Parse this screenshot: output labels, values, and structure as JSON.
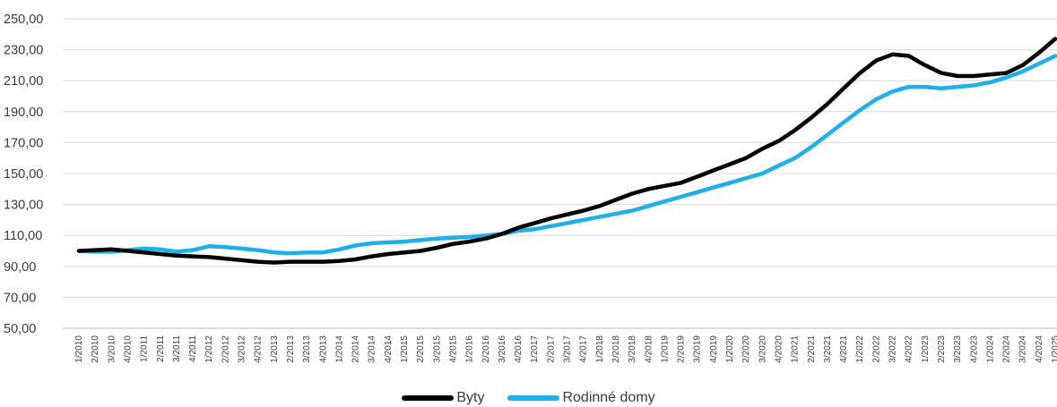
{
  "chart_data": {
    "type": "line",
    "title": "",
    "xlabel": "",
    "ylabel": "",
    "ylim": [
      50,
      250
    ],
    "y_ticks": [
      "50,00",
      "70,00",
      "90,00",
      "110,00",
      "130,00",
      "150,00",
      "170,00",
      "190,00",
      "210,00",
      "230,00",
      "250,00"
    ],
    "grid": true,
    "legend_position": "bottom",
    "categories": [
      "1/2010",
      "2/2010",
      "3/2010",
      "4/2010",
      "1/2011",
      "2/2011",
      "3/2011",
      "4/2011",
      "1/2012",
      "2/2012",
      "3/2012",
      "4/2012",
      "1/2013",
      "2/2013",
      "3/2013",
      "4/2013",
      "1/2014",
      "2/2014",
      "3/2014",
      "4/2014",
      "1/2015",
      "2/2015",
      "3/2015",
      "4/2015",
      "1/2016",
      "2/2016",
      "3/2016",
      "4/2016",
      "1/2017",
      "2/2017",
      "3/2017",
      "4/2017",
      "1/2018",
      "2/2018",
      "3/2018",
      "4/2018",
      "1/2019",
      "2/2019",
      "3/2019",
      "4/2019",
      "1/2020",
      "2/2020",
      "3/2020",
      "4/2020",
      "1/2021",
      "2/2021",
      "3/2021",
      "4/2021",
      "1/2022",
      "2/2022",
      "3/2022",
      "4/2022",
      "1/2023",
      "2/2023",
      "3/2023",
      "4/2023",
      "1/2024",
      "2/2024",
      "3/2024",
      "4/2024",
      "1/2025"
    ],
    "series": [
      {
        "name": "Byty",
        "color": "#000000",
        "values": [
          100,
          100.5,
          101,
          100,
          99,
          98,
          97,
          96.5,
          96,
          95,
          94,
          93,
          92.5,
          93,
          93,
          93,
          93.5,
          94.5,
          96.5,
          98,
          99,
          100,
          102,
          104.5,
          106,
          108,
          111,
          115,
          118,
          121,
          123.5,
          126,
          129,
          133,
          137,
          140,
          142,
          144,
          148,
          152,
          156,
          160,
          166,
          171,
          178,
          186,
          195,
          205,
          215,
          223,
          227,
          226,
          220,
          215,
          213,
          213,
          214,
          215,
          220,
          228,
          237
        ]
      },
      {
        "name": "Rodinné domy",
        "color": "#1fb0ea",
        "values": [
          100,
          99.5,
          99.5,
          100.5,
          101.5,
          101,
          99.5,
          100.5,
          103,
          102.5,
          101.5,
          100.5,
          99,
          98.5,
          99,
          99,
          101,
          103.5,
          105,
          105.5,
          106,
          107,
          108,
          108.5,
          109,
          110,
          111,
          113,
          114,
          116,
          118,
          120,
          122,
          124,
          126,
          129,
          132,
          135,
          138,
          141,
          144,
          147,
          150,
          155,
          160,
          167,
          175,
          183,
          191,
          198,
          203,
          206,
          206,
          205,
          206,
          207,
          209,
          212,
          216,
          221,
          226
        ]
      }
    ]
  }
}
